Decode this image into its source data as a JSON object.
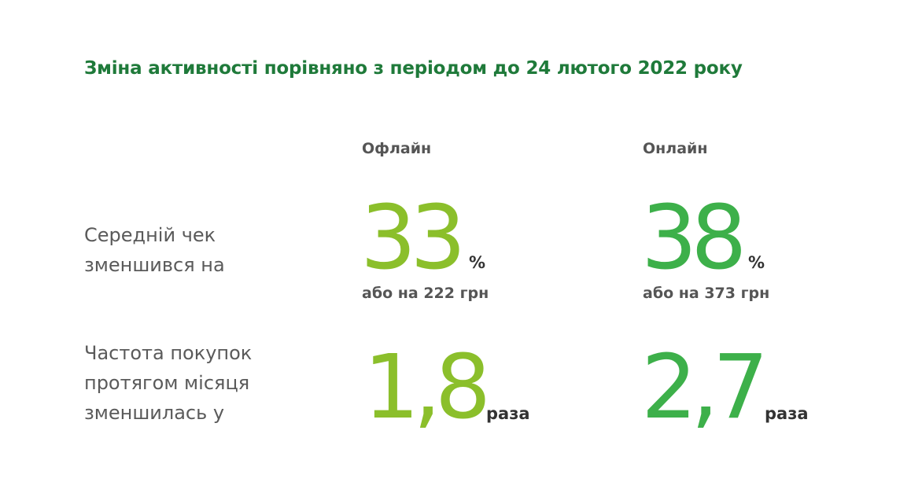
{
  "title": "Зміна активності порівняно з періодом до 24 лютого 2022 року",
  "columns": {
    "offline": "Офлайн",
    "online": "Онлайн"
  },
  "rows": [
    {
      "label_lines": [
        "Середній чек",
        "зменшився на"
      ],
      "offline": {
        "value": "33",
        "unit": "%",
        "note": "або на 222 грн"
      },
      "online": {
        "value": "38",
        "unit": "%",
        "note": "або на 373 грн"
      }
    },
    {
      "label_lines": [
        "Частота покупок",
        "протягом місяця",
        "зменшилась у"
      ],
      "offline": {
        "value": "1,8",
        "unit": "раза"
      },
      "online": {
        "value": "2,7",
        "unit": "раза"
      }
    }
  ],
  "colors": {
    "title": "#1f7a3a",
    "offline_value": "#8bbf2b",
    "online_value": "#3db04a"
  }
}
